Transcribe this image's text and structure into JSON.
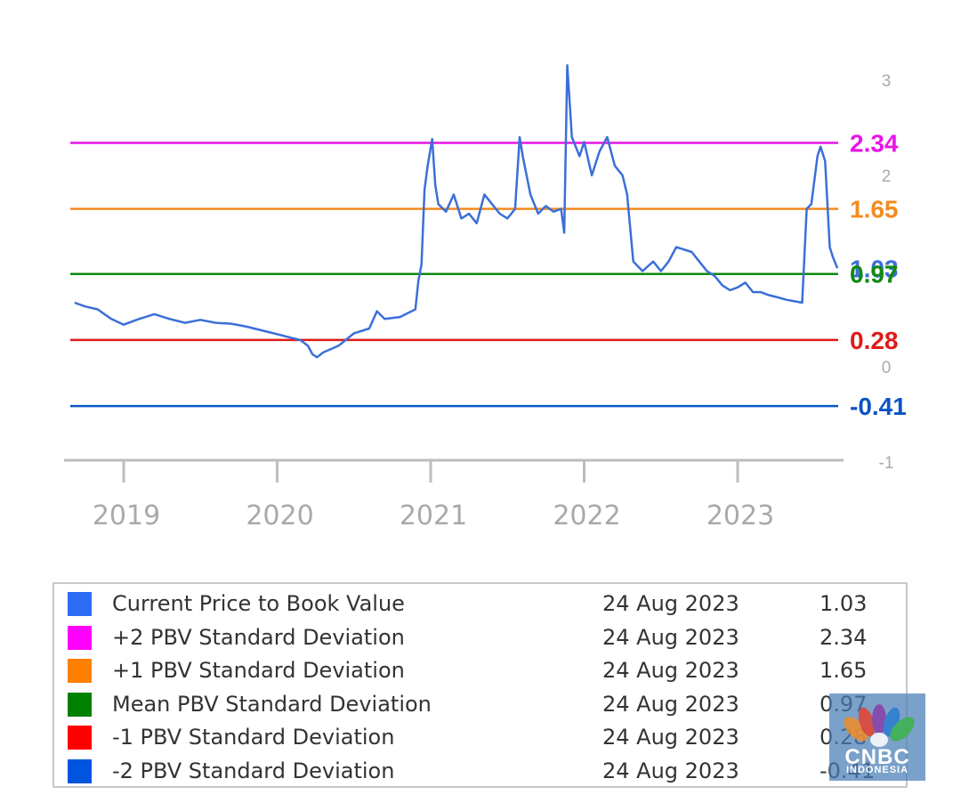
{
  "chart_data": {
    "type": "line",
    "x_ticks": [
      "2019",
      "2020",
      "2021",
      "2022",
      "2023"
    ],
    "y_ticks": [
      "3",
      "2",
      "0",
      "-1"
    ],
    "ylim": [
      -1,
      3.2
    ],
    "grid": false,
    "legend": "bottom",
    "series": [
      {
        "name": "Current Price to Book Value",
        "color": "#3b6fd8",
        "points": [
          [
            2018.68,
            0.67
          ],
          [
            2018.75,
            0.63
          ],
          [
            2018.83,
            0.6
          ],
          [
            2018.92,
            0.5
          ],
          [
            2019.0,
            0.44
          ],
          [
            2019.1,
            0.5
          ],
          [
            2019.2,
            0.55
          ],
          [
            2019.3,
            0.5
          ],
          [
            2019.4,
            0.46
          ],
          [
            2019.5,
            0.49
          ],
          [
            2019.6,
            0.46
          ],
          [
            2019.7,
            0.45
          ],
          [
            2019.8,
            0.42
          ],
          [
            2019.9,
            0.38
          ],
          [
            2020.0,
            0.34
          ],
          [
            2020.1,
            0.3
          ],
          [
            2020.15,
            0.28
          ],
          [
            2020.2,
            0.22
          ],
          [
            2020.23,
            0.13
          ],
          [
            2020.26,
            0.1
          ],
          [
            2020.3,
            0.15
          ],
          [
            2020.4,
            0.22
          ],
          [
            2020.5,
            0.35
          ],
          [
            2020.6,
            0.4
          ],
          [
            2020.65,
            0.58
          ],
          [
            2020.7,
            0.5
          ],
          [
            2020.8,
            0.52
          ],
          [
            2020.9,
            0.6
          ],
          [
            2020.92,
            0.9
          ],
          [
            2020.94,
            1.07
          ],
          [
            2020.96,
            1.85
          ],
          [
            2020.98,
            2.1
          ],
          [
            2021.01,
            2.38
          ],
          [
            2021.03,
            1.9
          ],
          [
            2021.05,
            1.7
          ],
          [
            2021.1,
            1.62
          ],
          [
            2021.15,
            1.8
          ],
          [
            2021.2,
            1.55
          ],
          [
            2021.25,
            1.6
          ],
          [
            2021.3,
            1.5
          ],
          [
            2021.35,
            1.8
          ],
          [
            2021.4,
            1.7
          ],
          [
            2021.45,
            1.6
          ],
          [
            2021.5,
            1.55
          ],
          [
            2021.55,
            1.65
          ],
          [
            2021.58,
            2.4
          ],
          [
            2021.6,
            2.2
          ],
          [
            2021.65,
            1.8
          ],
          [
            2021.7,
            1.6
          ],
          [
            2021.75,
            1.68
          ],
          [
            2021.8,
            1.62
          ],
          [
            2021.85,
            1.65
          ],
          [
            2021.87,
            1.4
          ],
          [
            2021.89,
            3.15
          ],
          [
            2021.92,
            2.4
          ],
          [
            2021.97,
            2.2
          ],
          [
            2022.0,
            2.35
          ],
          [
            2022.05,
            2.0
          ],
          [
            2022.1,
            2.25
          ],
          [
            2022.15,
            2.4
          ],
          [
            2022.2,
            2.1
          ],
          [
            2022.25,
            2.0
          ],
          [
            2022.28,
            1.8
          ],
          [
            2022.32,
            1.1
          ],
          [
            2022.38,
            1.0
          ],
          [
            2022.45,
            1.1
          ],
          [
            2022.5,
            1.0
          ],
          [
            2022.55,
            1.1
          ],
          [
            2022.6,
            1.25
          ],
          [
            2022.7,
            1.2
          ],
          [
            2022.75,
            1.1
          ],
          [
            2022.8,
            1.0
          ],
          [
            2022.85,
            0.95
          ],
          [
            2022.9,
            0.85
          ],
          [
            2022.95,
            0.8
          ],
          [
            2023.0,
            0.83
          ],
          [
            2023.05,
            0.88
          ],
          [
            2023.1,
            0.78
          ],
          [
            2023.15,
            0.78
          ],
          [
            2023.2,
            0.75
          ],
          [
            2023.25,
            0.73
          ],
          [
            2023.32,
            0.7
          ],
          [
            2023.42,
            0.67
          ],
          [
            2023.45,
            1.65
          ],
          [
            2023.48,
            1.7
          ],
          [
            2023.52,
            2.2
          ],
          [
            2023.54,
            2.3
          ],
          [
            2023.57,
            2.15
          ],
          [
            2023.6,
            1.25
          ],
          [
            2023.62,
            1.15
          ],
          [
            2023.65,
            1.03
          ]
        ]
      }
    ],
    "bands": [
      {
        "name": "+2 PBV Standard Deviation",
        "value": 2.34,
        "label": "2.34",
        "color": "#e815e8"
      },
      {
        "name": "+1 PBV Standard Deviation",
        "value": 1.65,
        "label": "1.65",
        "color": "#f58a1f"
      },
      {
        "name": "Mean PBV Standard Deviation",
        "value": 0.97,
        "label": "0.97",
        "color": "#108a10"
      },
      {
        "name": "-1 PBV Standard Deviation",
        "value": 0.28,
        "label": "0.28",
        "color": "#e01a1a"
      },
      {
        "name": "-2 PBV Standard Deviation",
        "value": -0.41,
        "label": "-0.41",
        "color": "#0b55c4"
      }
    ],
    "current_label": {
      "text": "1.03",
      "color": "#3b6fd8"
    }
  },
  "legend": {
    "rows": [
      {
        "name": "Current Price to Book Value",
        "date": "24 Aug 2023",
        "value": "1.03",
        "color": "#2d6df6"
      },
      {
        "name": "+2 PBV Standard Deviation",
        "date": "24 Aug 2023",
        "value": "2.34",
        "color": "#ff00ff"
      },
      {
        "name": "+1 PBV Standard Deviation",
        "date": "24 Aug 2023",
        "value": "1.65",
        "color": "#ff8000"
      },
      {
        "name": "Mean PBV Standard Deviation",
        "date": "24 Aug 2023",
        "value": "0.97",
        "color": "#008000"
      },
      {
        "name": "-1 PBV Standard Deviation",
        "date": "24 Aug 2023",
        "value": "0.28",
        "color": "#ff0000"
      },
      {
        "name": "-2 PBV Standard Deviation",
        "date": "24 Aug 2023",
        "value": "-0.41",
        "color": "#0055e0"
      }
    ]
  },
  "watermark": {
    "brand": "CNBC",
    "sub": "INDONESIA",
    "icon": "peacock-logo-icon"
  }
}
